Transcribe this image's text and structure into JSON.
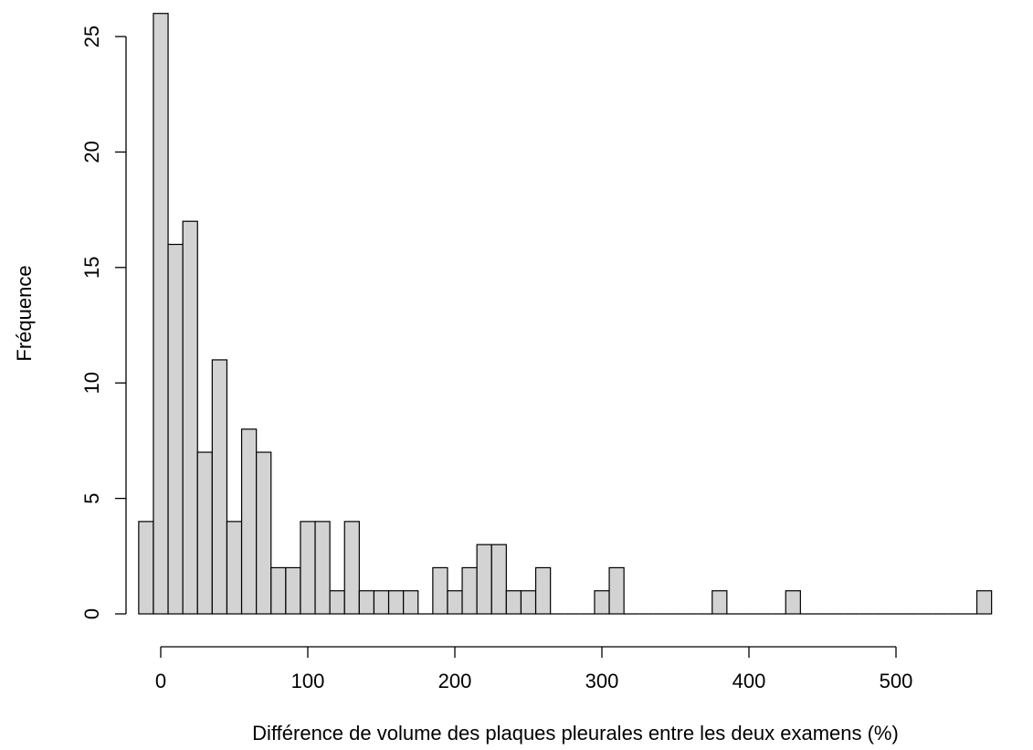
{
  "chart_data": {
    "type": "bar",
    "title": "",
    "xlabel": "Différence de volume des plaques pleurales entre les deux examens (%)",
    "ylabel": "Fréquence",
    "bin_width": 10,
    "bin_start": -15,
    "values": [
      4,
      26,
      16,
      17,
      7,
      11,
      4,
      8,
      7,
      2,
      2,
      4,
      4,
      1,
      4,
      1,
      1,
      1,
      1,
      0,
      2,
      1,
      2,
      3,
      3,
      1,
      1,
      2,
      0,
      0,
      0,
      1,
      2,
      0,
      0,
      0,
      0,
      0,
      0,
      1,
      0,
      0,
      0,
      0,
      1,
      0,
      0,
      0,
      0,
      0,
      0,
      0,
      0,
      0,
      0,
      0,
      0,
      1
    ],
    "xlim": [
      -15,
      565
    ],
    "ylim": [
      0,
      26
    ],
    "xticks": [
      0,
      100,
      200,
      300,
      400,
      500
    ],
    "yticks": [
      0,
      5,
      10,
      15,
      20,
      25
    ],
    "bar_color": "#d3d3d3",
    "grid": false,
    "legend": "none"
  }
}
